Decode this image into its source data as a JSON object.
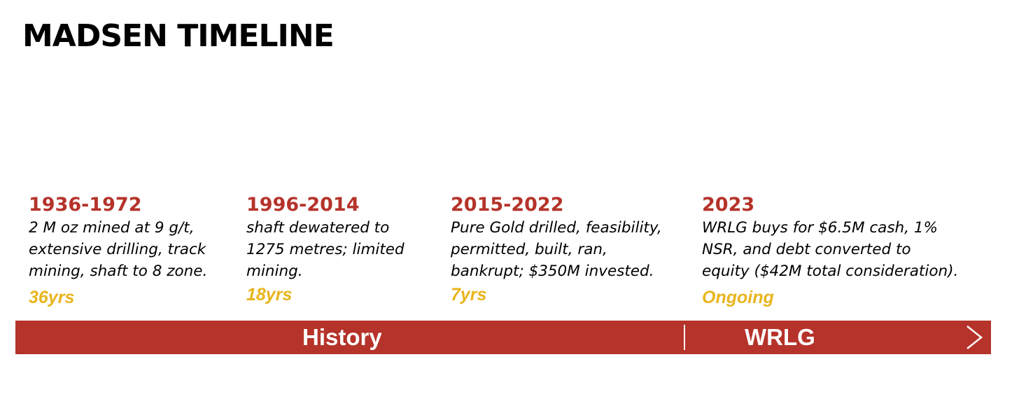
{
  "title": "MADSEN TIMELINE",
  "colors": {
    "accent_red": "#b5332a",
    "duration_gold": "#e8b51c",
    "text": "#000000",
    "background": "#ffffff"
  },
  "eras": [
    {
      "years": "1936-1972",
      "description": "2 M oz mined at 9 g/t,\nextensive drilling, track\nmining, shaft to 8 zone.",
      "duration": "36yrs"
    },
    {
      "years": "1996-2014",
      "description": "shaft dewatered to\n1275 metres; limited\nmining.",
      "duration": "18yrs"
    },
    {
      "years": "2015-2022",
      "description": "Pure Gold drilled, feasibility,\npermitted, built, ran,\nbankrupt; $350M invested.",
      "duration": "7yrs"
    },
    {
      "years": "2023",
      "description": "WRLG buys for $6.5M cash, 1%\nNSR, and debt converted to\nequity ($42M total consideration).",
      "duration": "Ongoing"
    }
  ],
  "timeline_bar": {
    "history_label": "History",
    "wrlg_label": "WRLG",
    "end_icon": "chevron-right-icon"
  }
}
